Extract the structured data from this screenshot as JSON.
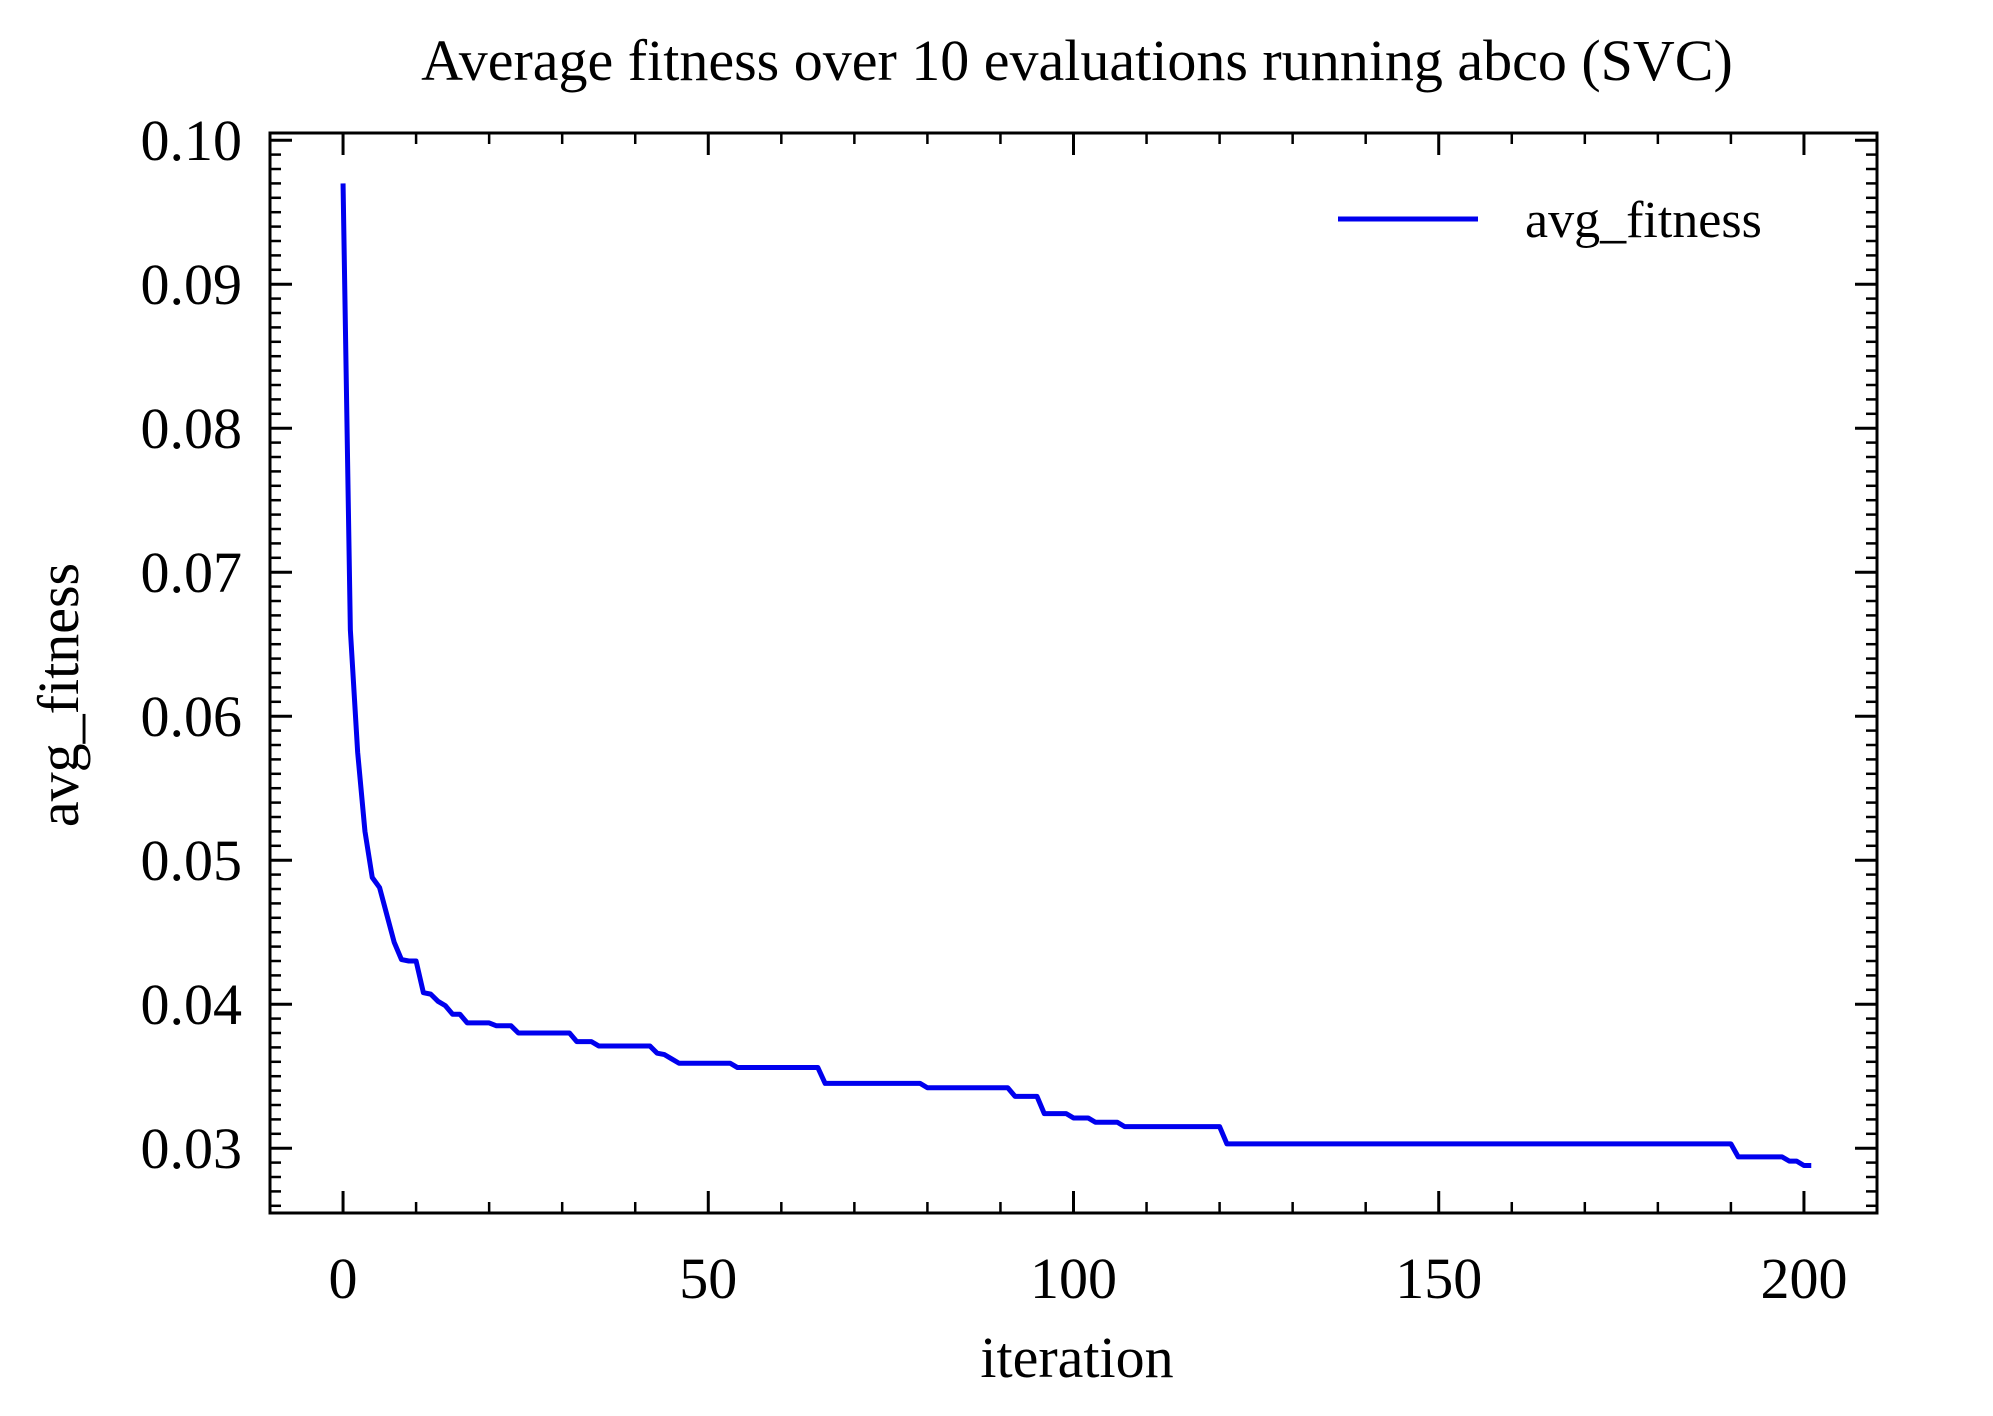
{
  "chart_data": {
    "type": "line",
    "title": "Average fitness over 10 evaluations running abco (SVC)",
    "xlabel": "iteration",
    "ylabel": "avg_fitness",
    "xlim": [
      -10,
      210
    ],
    "ylim": [
      0.0255,
      0.1005
    ],
    "x_ticks": [
      0,
      50,
      100,
      150,
      200
    ],
    "x_tick_labels": [
      "0",
      "50",
      "100",
      "150",
      "200"
    ],
    "y_ticks": [
      0.03,
      0.04,
      0.05,
      0.06,
      0.07,
      0.08,
      0.09,
      0.1
    ],
    "y_tick_labels": [
      "0.03",
      "0.04",
      "0.05",
      "0.06",
      "0.07",
      "0.08",
      "0.09",
      "0.10"
    ],
    "grid": false,
    "legend_position": "top-right",
    "series": [
      {
        "name": "avg_fitness",
        "color": "#0000ee",
        "points": [
          [
            0,
            0.097
          ],
          [
            1,
            0.066
          ],
          [
            2,
            0.0575
          ],
          [
            3,
            0.052
          ],
          [
            4,
            0.0488
          ],
          [
            5,
            0.0481
          ],
          [
            6,
            0.0462
          ],
          [
            7,
            0.0443
          ],
          [
            8,
            0.0431
          ],
          [
            9,
            0.043
          ],
          [
            10,
            0.043
          ],
          [
            11,
            0.0408
          ],
          [
            12,
            0.0407
          ],
          [
            13,
            0.0402
          ],
          [
            14,
            0.0399
          ],
          [
            15,
            0.0393
          ],
          [
            16,
            0.0393
          ],
          [
            17,
            0.0387
          ],
          [
            18,
            0.0387
          ],
          [
            20,
            0.0387
          ],
          [
            21,
            0.0385
          ],
          [
            23,
            0.0385
          ],
          [
            24,
            0.038
          ],
          [
            31,
            0.038
          ],
          [
            32,
            0.0374
          ],
          [
            34,
            0.0374
          ],
          [
            35,
            0.0371
          ],
          [
            42,
            0.0371
          ],
          [
            43,
            0.0366
          ],
          [
            44,
            0.0365
          ],
          [
            45,
            0.0362
          ],
          [
            46,
            0.0359
          ],
          [
            53,
            0.0359
          ],
          [
            54,
            0.0356
          ],
          [
            65,
            0.0356
          ],
          [
            66,
            0.0345
          ],
          [
            79,
            0.0345
          ],
          [
            80,
            0.0342
          ],
          [
            91,
            0.0342
          ],
          [
            92,
            0.0336
          ],
          [
            95,
            0.0336
          ],
          [
            96,
            0.0324
          ],
          [
            99,
            0.0324
          ],
          [
            100,
            0.0321
          ],
          [
            102,
            0.0321
          ],
          [
            103,
            0.0318
          ],
          [
            106,
            0.0318
          ],
          [
            107,
            0.0315
          ],
          [
            120,
            0.0315
          ],
          [
            121,
            0.0303
          ],
          [
            190,
            0.0303
          ],
          [
            191,
            0.0294
          ],
          [
            197,
            0.0294
          ],
          [
            198,
            0.0291
          ],
          [
            199,
            0.0291
          ],
          [
            200,
            0.0288
          ],
          [
            201,
            0.0288
          ]
        ]
      }
    ]
  }
}
